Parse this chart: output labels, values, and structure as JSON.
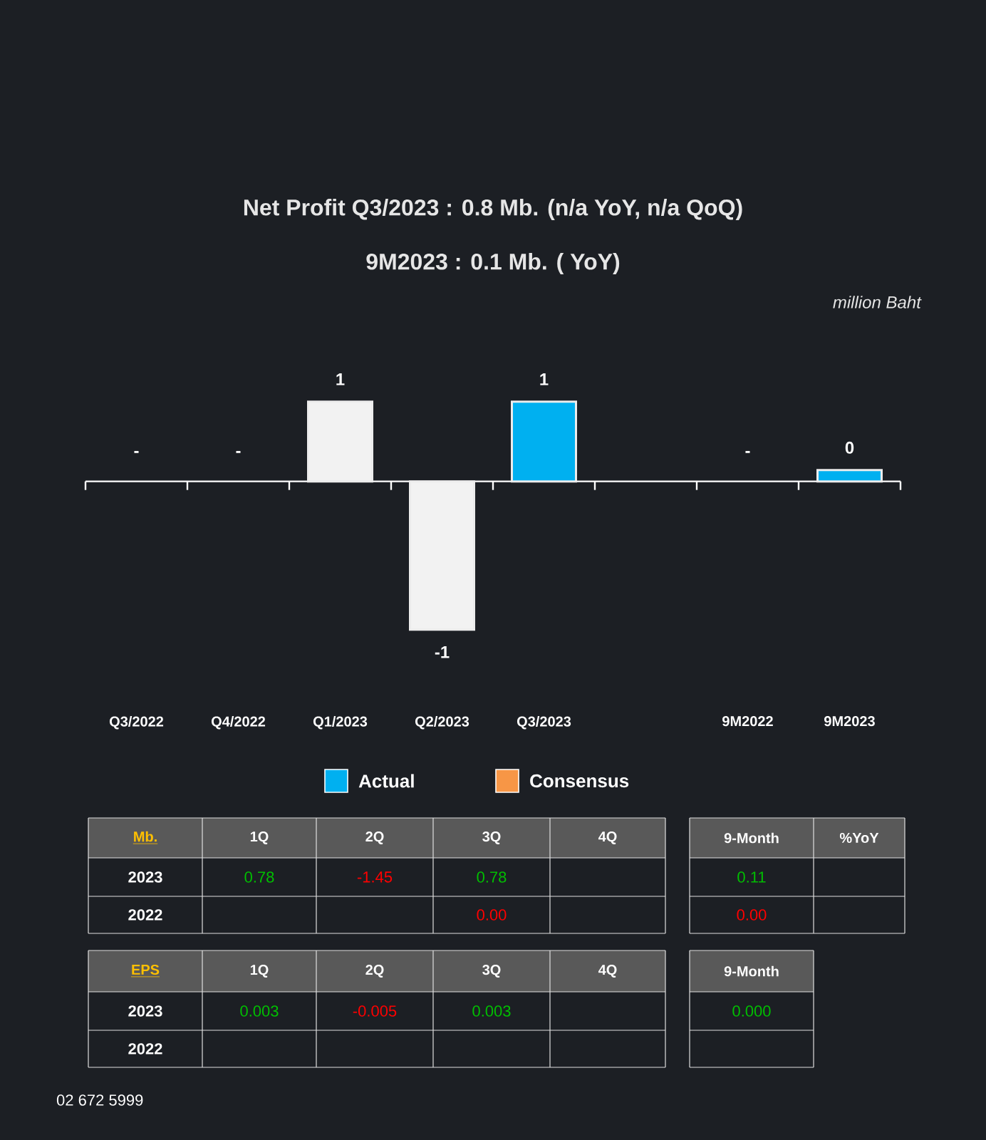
{
  "chart_data": [
    {
      "type": "bar",
      "title": "Net Profit  Q3/2023 : 0.8 Mb. (n/a  YoY, n/a QoQ)",
      "subtitle": "9M2023 : 0.1 Mb. ( YoY)",
      "annotations": [
        "million Baht",
        "Mb.",
        "1Q",
        "2Q",
        "3Q",
        "4Q",
        "2023",
        "0.78",
        "-1.45",
        "0.78",
        "2022",
        "0.00",
        "9-Month",
        "%YoY",
        "0.11",
        "0.00",
        "EPS",
        "1Q",
        "2Q",
        "3Q",
        "4Q",
        "2023",
        "0.003",
        "-0.005",
        "0.003",
        "2022",
        "9-Month",
        "0.000",
        "02 672 5999"
      ],
      "categories": [
        "Q3/2022",
        "Q4/2022",
        "Q1/2023",
        "Q2/2023",
        "Q3/2023",
        null,
        "9M2022",
        "9M2023"
      ],
      "legend": "bottom",
      "series": [
        {
          "name": "Actual",
          "color": "#00b0f0",
          "colors": [
            "#00b0f0",
            "#00b0f0",
            "#f2f2f2",
            "#f2f2f2",
            "#00b0f0",
            "#00b0f0",
            "#00b0f0",
            "#00b0f0"
          ],
          "values": [
            null,
            null,
            0.78,
            -1.45,
            0.78,
            null,
            null,
            0.11
          ],
          "value_labels": [
            "-",
            "-",
            "1",
            "-1",
            "1",
            null,
            "-",
            "0"
          ]
        },
        {
          "name": "Consensus",
          "color": "#f79646",
          "values": [
            null,
            null,
            null,
            null,
            null,
            null,
            null,
            null
          ]
        }
      ]
    }
  ]
}
